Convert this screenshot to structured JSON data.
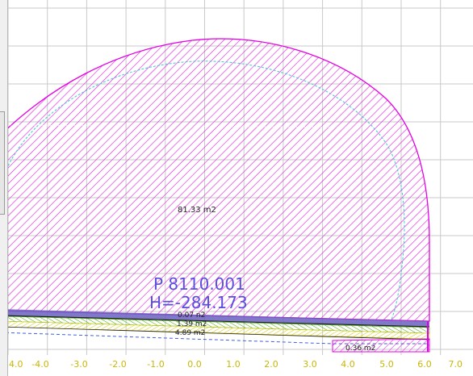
{
  "canvas": {
    "background": "#ffffff",
    "grid_color": "#c9c9c9",
    "axis_label_color": "#c8b800"
  },
  "x_axis": {
    "ticks": [
      "4.0",
      "-4.0",
      "-3.0",
      "-2.0",
      "-1.0",
      "0.0",
      "1.0",
      "2.0",
      "3.0",
      "4.0",
      "5.0",
      "6.0",
      "7.0"
    ]
  },
  "section": {
    "main_area_label": "81.33 m2",
    "point_label": "P 8110.001",
    "height_label": "H=-284.173",
    "layer_labels": [
      "0.07 n2",
      "1.39 m2",
      "4.89 m2"
    ],
    "notch_label": "0.36 m2",
    "colors": {
      "main_hatch": "#e400e4",
      "dashed_outline": "#40c8d8",
      "point_text": "#5a4ee0",
      "layer_band": "#6a60c0",
      "green_layer": "#3aa800",
      "yellow_layer": "#d4c800",
      "black_lines": "#202020"
    }
  }
}
